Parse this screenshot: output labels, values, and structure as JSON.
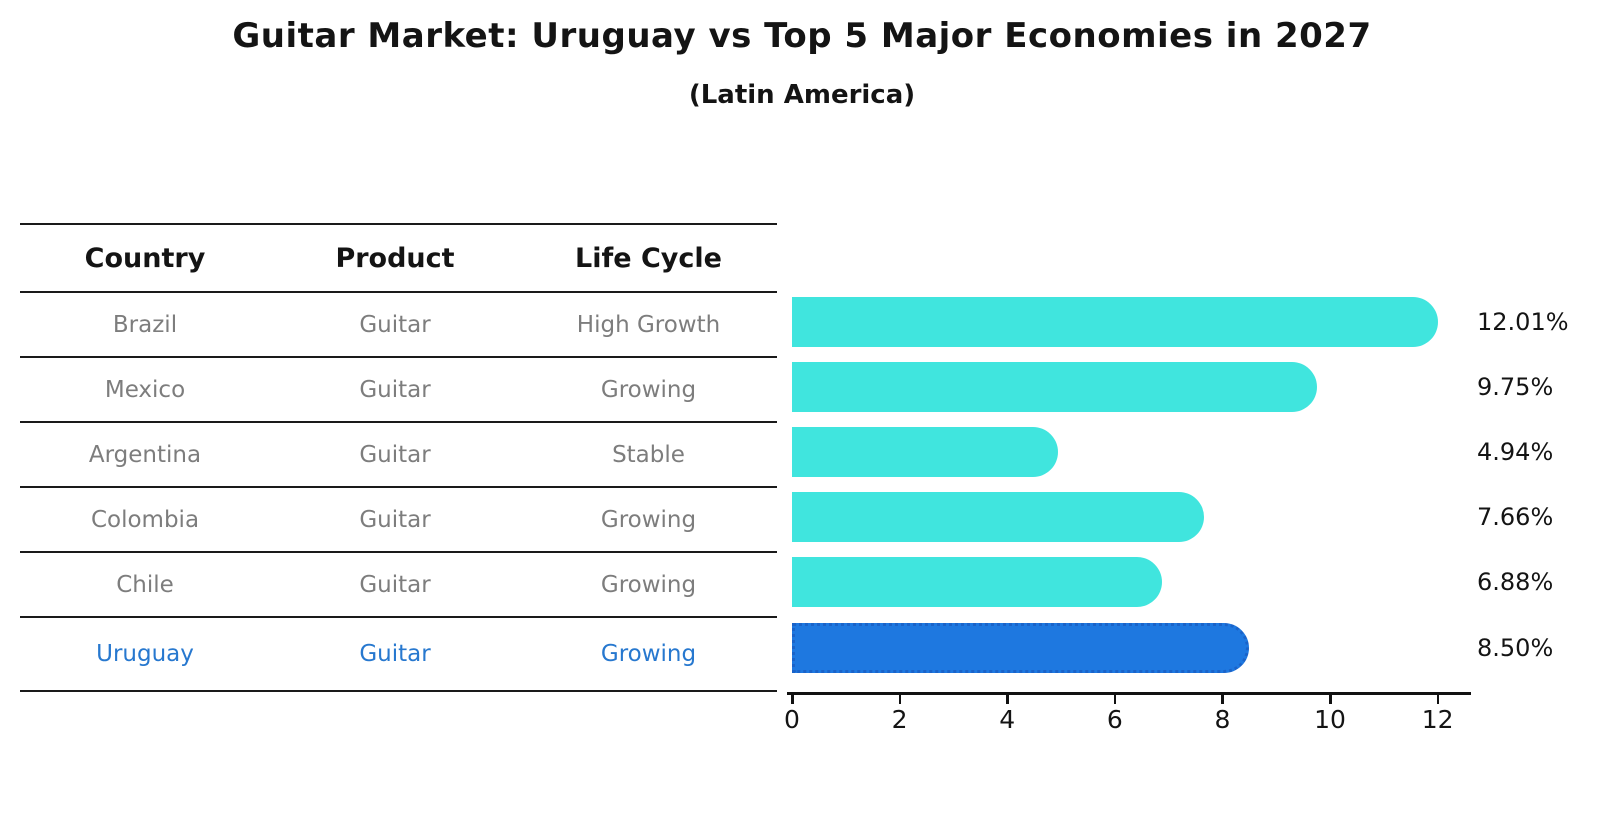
{
  "title": "Guitar Market: Uruguay vs Top 5 Major Economies in 2027",
  "subtitle": "(Latin America)",
  "table": {
    "headers": [
      "Country",
      "Product",
      "Life Cycle"
    ],
    "rows": [
      {
        "country": "Brazil",
        "product": "Guitar",
        "life_cycle": "High Growth",
        "highlight": false
      },
      {
        "country": "Mexico",
        "product": "Guitar",
        "life_cycle": "Growing",
        "highlight": false
      },
      {
        "country": "Argentina",
        "product": "Guitar",
        "life_cycle": "Stable",
        "highlight": false
      },
      {
        "country": "Colombia",
        "product": "Guitar",
        "life_cycle": "Growing",
        "highlight": false
      },
      {
        "country": "Chile",
        "product": "Guitar",
        "life_cycle": "Growing",
        "highlight": false
      },
      {
        "country": "Uruguay",
        "product": "Guitar",
        "life_cycle": "Growing",
        "highlight": true
      }
    ]
  },
  "chart_data": {
    "type": "bar",
    "orientation": "horizontal",
    "title": "Guitar Market: Uruguay vs Top 5 Major Economies in 2027",
    "subtitle": "(Latin America)",
    "categories": [
      "Brazil",
      "Mexico",
      "Argentina",
      "Colombia",
      "Chile",
      "Uruguay"
    ],
    "values": [
      12.01,
      9.75,
      4.94,
      7.66,
      6.88,
      8.5
    ],
    "value_labels": [
      "12.01%",
      "9.75%",
      "4.94%",
      "7.66%",
      "6.88%",
      "8.50%"
    ],
    "x_ticks": [
      0,
      2,
      4,
      6,
      8,
      10,
      12
    ],
    "xlim": [
      0,
      12.65
    ],
    "grid": false,
    "legend": "none",
    "highlight_index": 5,
    "colors": {
      "bar": "#40e5de",
      "highlight_bar": "#1e78e0",
      "highlight_border": "#1a63c9",
      "muted_text": "#7d7d7d",
      "highlight_text": "#2778cf",
      "ink": "#141414"
    }
  }
}
